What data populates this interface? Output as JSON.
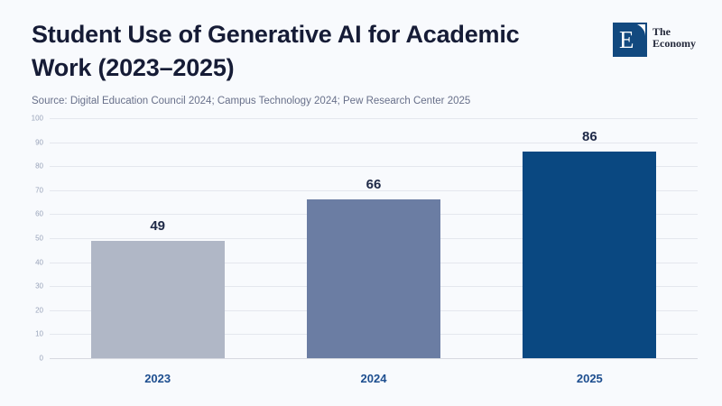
{
  "header": {
    "title_line1": "Student Use of Generative AI for Academic",
    "title_line2": "Work (2023–2025)",
    "source": "Source: Digital Education Council 2024; Campus Technology 2024; Pew Research Center 2025"
  },
  "logo": {
    "letter": "E",
    "text_line1": "The",
    "text_line2": "Economy"
  },
  "chart_data": {
    "type": "bar",
    "title": "Student Use of Generative AI for Academic Work (2023–2025)",
    "categories": [
      "2023",
      "2024",
      "2025"
    ],
    "values": [
      49,
      66,
      86
    ],
    "bar_colors": [
      "#b0b7c6",
      "#6b7da3",
      "#0a4881"
    ],
    "xlabel": "",
    "ylabel": "",
    "ylim": [
      0,
      100
    ],
    "ytick_step": 10,
    "grid": true,
    "legend": "none",
    "value_labels_shown": true
  },
  "colors": {
    "page_bg": "#f8fafd",
    "title": "#161c36",
    "source": "#68708a",
    "value_label": "#1e2947",
    "x_tick_label": "#1d4e8f",
    "y_tick_label": "#9aa4ba",
    "gridline": "#e4e7ee",
    "axis_line": "#d6d9e0",
    "logo_square": "#12497f",
    "logo_text": "#23283a"
  }
}
